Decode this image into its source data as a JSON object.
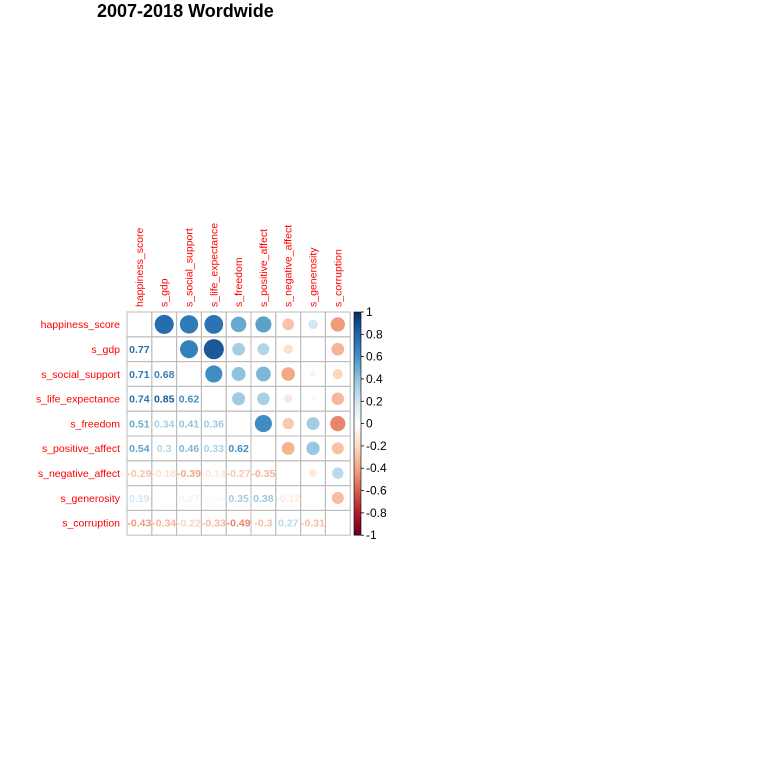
{
  "chart_data": {
    "type": "heatmap",
    "title": "2007-2018 Wordwide",
    "variables": [
      "happiness_score",
      "s_gdp",
      "s_social_support",
      "s_life_expectance",
      "s_freedom",
      "s_positive_affect",
      "s_negative_affect",
      "s_generosity",
      "s_corruption"
    ],
    "lower_labels": [
      [],
      [
        "0.77"
      ],
      [
        "0.71",
        "0.68"
      ],
      [
        "0.74",
        "0.85",
        "0.62"
      ],
      [
        "0.51",
        "0.34",
        "0.41",
        "0.36"
      ],
      [
        "0.54",
        "0.3",
        "0.46",
        "0.33",
        "0.62"
      ],
      [
        "-0.29",
        "-0.18",
        "-0.39",
        "-0.14",
        "-0.27",
        "-0.35"
      ],
      [
        "0.19",
        "0",
        "0.07",
        "0.04",
        "0.35",
        "0.38",
        "-0.12"
      ],
      [
        "-0.43",
        "-0.34",
        "-0.22",
        "-0.33",
        "-0.49",
        "-0.3",
        "0.27",
        "-0.31"
      ]
    ],
    "upper_values": [
      [
        0.77,
        0.71,
        0.74,
        0.51,
        0.54,
        -0.29,
        0.19,
        -0.43
      ],
      [
        0.68,
        0.85,
        0.34,
        0.3,
        -0.18,
        0.0,
        -0.34
      ],
      [
        0.62,
        0.41,
        0.46,
        -0.39,
        0.07,
        -0.22
      ],
      [
        0.36,
        0.33,
        -0.14,
        0.04,
        -0.33
      ],
      [
        0.62,
        -0.27,
        0.35,
        -0.49
      ],
      [
        -0.35,
        0.38,
        -0.3
      ],
      [
        -0.12,
        0.27
      ],
      [
        -0.31
      ]
    ],
    "colorbar_ticks": [
      "1",
      "0.8",
      "0.6",
      "0.4",
      "0.2",
      "0",
      "-0.2",
      "-0.4",
      "-0.6",
      "-0.8",
      "-1"
    ],
    "value_range": [
      -1,
      1
    ],
    "upper_glyph": "circle",
    "lower_glyph": "number",
    "palette": [
      "#67001F",
      "#B2182B",
      "#D6604D",
      "#F4A582",
      "#FDDBC7",
      "#FFFFFF",
      "#D1E5F0",
      "#92C5DE",
      "#4393C3",
      "#2166AC",
      "#053061"
    ],
    "label_color": "#FF0000",
    "grid_color": "#BBBBBB"
  }
}
